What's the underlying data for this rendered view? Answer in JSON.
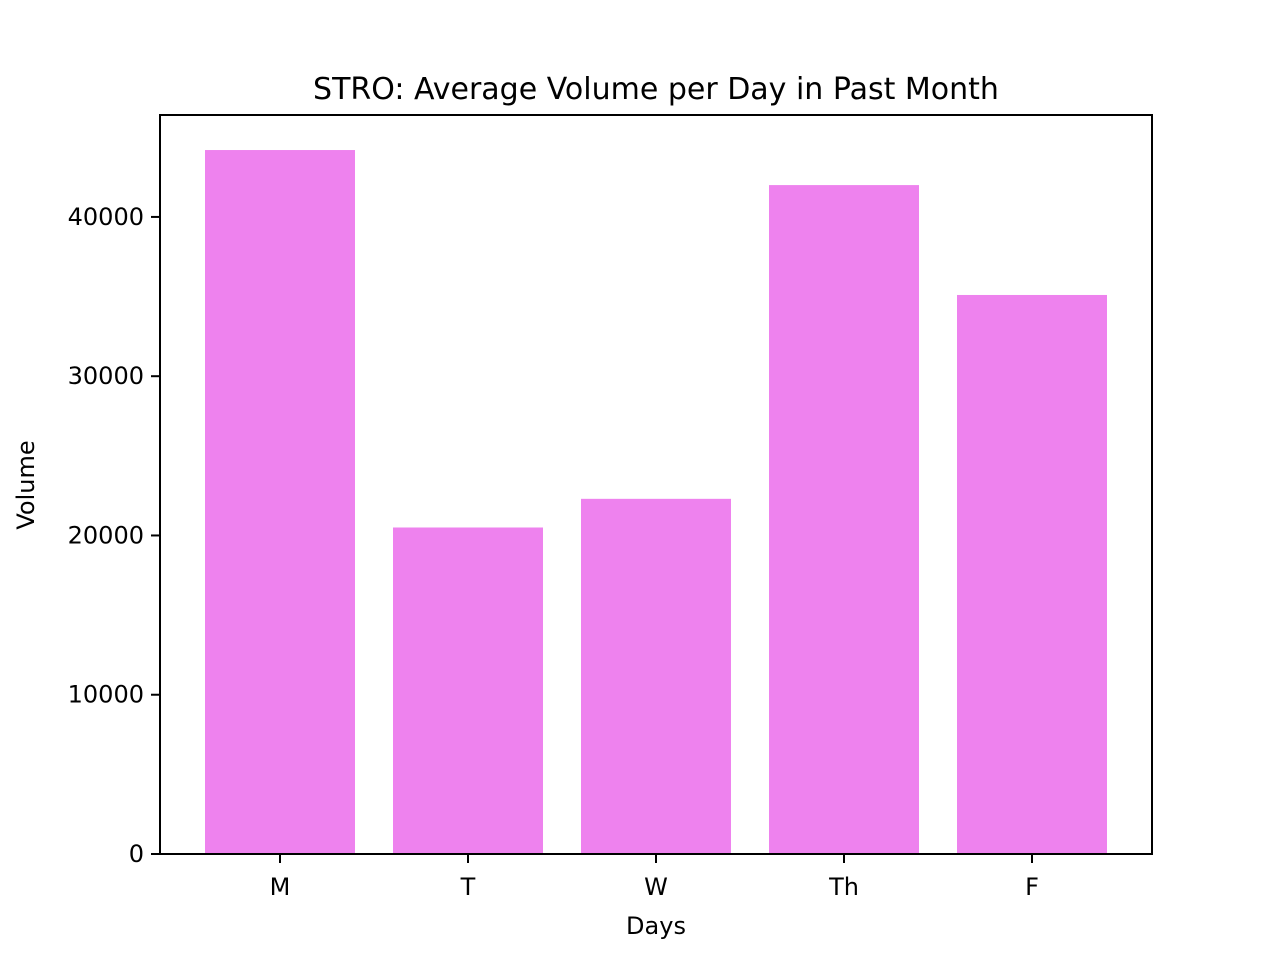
{
  "chart_data": {
    "type": "bar",
    "title": "STRO: Average Volume per Day in Past Month",
    "xlabel": "Days",
    "ylabel": "Volume",
    "categories": [
      "M",
      "T",
      "W",
      "Th",
      "F"
    ],
    "values": [
      44200,
      20500,
      22300,
      42000,
      35100
    ],
    "ylim": [
      0,
      46400
    ],
    "yticks": [
      0,
      10000,
      20000,
      30000,
      40000
    ],
    "ytick_labels": [
      "0",
      "10000",
      "20000",
      "30000",
      "40000"
    ],
    "bar_color": "#ee82ee",
    "grid": false,
    "legend": "none"
  }
}
